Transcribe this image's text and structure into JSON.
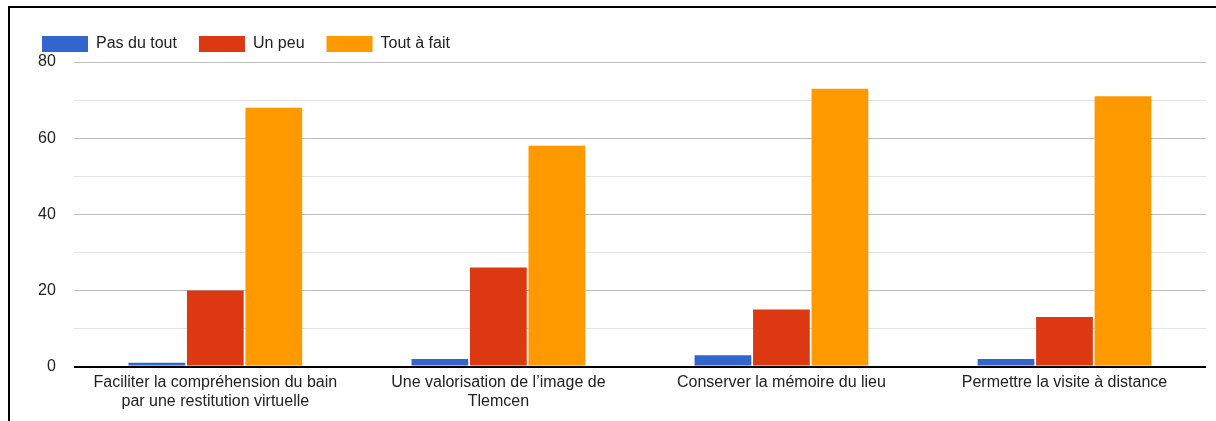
{
  "chart_data": {
    "type": "bar",
    "categories": [
      "Faciliter la compréhension du bain par une restitution virtuelle",
      "Une valorisation de l’image de Tlemcen",
      "Conserver la mémoire du lieu",
      "Permettre la visite à distance"
    ],
    "series": [
      {
        "name": "Pas du tout",
        "color": "#3366cc",
        "values": [
          1,
          2,
          3,
          2
        ]
      },
      {
        "name": "Un peu",
        "color": "#dc3912",
        "values": [
          20,
          26,
          15,
          13
        ]
      },
      {
        "name": "Tout à fait",
        "color": "#ff9900",
        "values": [
          68,
          58,
          73,
          71
        ]
      }
    ],
    "ylim": [
      0,
      80
    ],
    "yticks": [
      0,
      {
        "value": 10,
        "label": null
      },
      20,
      {
        "value": 30,
        "label": null
      },
      40,
      {
        "value": 50,
        "label": null
      },
      60,
      {
        "value": 70,
        "label": null
      },
      80
    ],
    "grid": "y",
    "legend": "top left"
  }
}
